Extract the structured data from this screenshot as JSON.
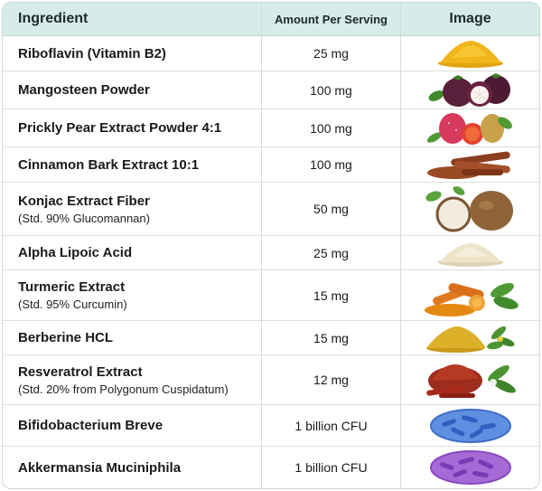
{
  "header": {
    "ingredient": "Ingredient",
    "amount": "Amount Per Serving",
    "image": "Image"
  },
  "rows": [
    {
      "name": "Riboflavin (Vitamin B2)",
      "sub": "",
      "amount": "25 mg",
      "icon": "yellow-powder-icon"
    },
    {
      "name": "Mangosteen Powder",
      "sub": "",
      "amount": "100 mg",
      "icon": "mangosteen-fruit-icon"
    },
    {
      "name": "Prickly Pear Extract Powder 4:1",
      "sub": "",
      "amount": "100 mg",
      "icon": "prickly-pear-fruit-icon"
    },
    {
      "name": "Cinnamon Bark Extract 10:1",
      "sub": "",
      "amount": "100 mg",
      "icon": "cinnamon-sticks-icon"
    },
    {
      "name": "Konjac Extract Fiber",
      "sub": "(Std. 90% Glucomannan)",
      "amount": "50 mg",
      "icon": "konjac-root-icon"
    },
    {
      "name": "Alpha Lipoic Acid",
      "sub": "",
      "amount": "25 mg",
      "icon": "white-powder-icon"
    },
    {
      "name": "Turmeric Extract",
      "sub": "(Std. 95% Curcumin)",
      "amount": "15 mg",
      "icon": "turmeric-root-icon"
    },
    {
      "name": "Berberine HCL",
      "sub": "",
      "amount": "15 mg",
      "icon": "berberine-powder-icon"
    },
    {
      "name": "Resveratrol Extract",
      "sub": "(Std. 20% from Polygonum Cuspidatum)",
      "amount": "12 mg",
      "icon": "resveratrol-powder-icon"
    },
    {
      "name": "Bifidobacterium Breve",
      "sub": "",
      "amount": "1 billion CFU",
      "icon": "blue-bacteria-icon"
    },
    {
      "name": "Akkermansia Muciniphila",
      "sub": "",
      "amount": "1 billion CFU",
      "icon": "purple-bacteria-icon"
    }
  ]
}
